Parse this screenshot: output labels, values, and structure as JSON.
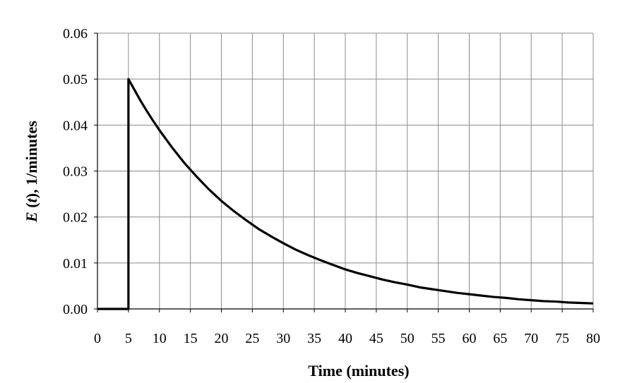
{
  "chart_data": {
    "type": "line",
    "xlabel": "Time (minutes)",
    "ylabel_prefix": "E",
    "ylabel_var": "t",
    "ylabel_suffix": ", 1/minutes",
    "xlim": [
      0,
      80
    ],
    "ylim": [
      0,
      0.06
    ],
    "x_ticks": [
      "0",
      "5",
      "10",
      "15",
      "20",
      "25",
      "30",
      "35",
      "40",
      "45",
      "50",
      "55",
      "60",
      "65",
      "70",
      "75",
      "80"
    ],
    "y_ticks": [
      "0.00",
      "0.01",
      "0.02",
      "0.03",
      "0.04",
      "0.05",
      "0.06"
    ],
    "grid": true,
    "series": [
      {
        "color": "#000000",
        "x": [
          0,
          5,
          5,
          6,
          7,
          8,
          9,
          10,
          12,
          14,
          16,
          18,
          20,
          22,
          24,
          26,
          28,
          30,
          32,
          34,
          36,
          38,
          40,
          42,
          44,
          46,
          48,
          50,
          52,
          54,
          56,
          58,
          60,
          62,
          64,
          66,
          68,
          70,
          72,
          74,
          76,
          78,
          80
        ],
        "y": [
          0,
          0,
          0.05,
          0.0476,
          0.0452,
          0.043,
          0.0409,
          0.0389,
          0.0352,
          0.0318,
          0.0288,
          0.026,
          0.0235,
          0.0213,
          0.0193,
          0.0174,
          0.0158,
          0.0143,
          0.0129,
          0.0117,
          0.0106,
          0.0096,
          0.0086,
          0.0078,
          0.0071,
          0.0064,
          0.0058,
          0.0053,
          0.0047,
          0.0043,
          0.0039,
          0.0035,
          0.0032,
          0.0029,
          0.0026,
          0.0024,
          0.0021,
          0.0019,
          0.0017,
          0.0016,
          0.0014,
          0.0013,
          0.0012
        ]
      }
    ]
  }
}
